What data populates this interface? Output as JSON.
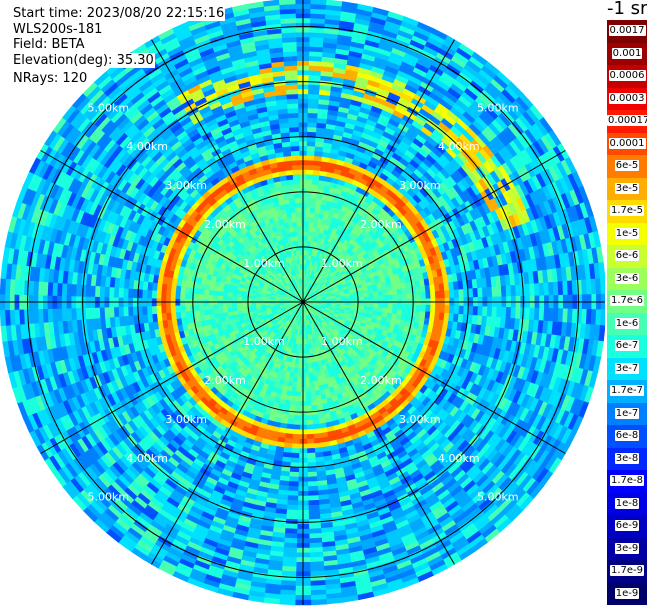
{
  "header": {
    "start_time": "Start time: 2023/08/20 22:15:16",
    "instrument": "WLS200s-181",
    "field": "Field: BETA",
    "elevation_label": "Elevation(deg):",
    "elevation_value": "35.30",
    "nrays": "NRays: 120"
  },
  "colorbar": {
    "unit": "-1 sr",
    "labels": [
      "0.0017",
      "0.001",
      "0.0006",
      "0.0003",
      "0.00017",
      "0.0001",
      "6e-5",
      "3e-5",
      "1.7e-5",
      "1e-5",
      "6e-6",
      "3e-6",
      "1.7e-6",
      "1e-6",
      "6e-7",
      "3e-7",
      "1.7e-7",
      "1e-7",
      "6e-8",
      "3e-8",
      "1.7e-8",
      "1e-8",
      "6e-9",
      "3e-9",
      "1.7e-9",
      "1e-9"
    ],
    "colors": [
      "#7f0000",
      "#9c0000",
      "#c40000",
      "#f10000",
      "#ff1a00",
      "#ff4a00",
      "#ff7c00",
      "#ffad00",
      "#ffdb00",
      "#f4ff00",
      "#c9ff2e",
      "#9dff5a",
      "#72ff86",
      "#46ffb2",
      "#1affdd",
      "#00e0ff",
      "#00b0ff",
      "#0080ff",
      "#0050ff",
      "#0028ff",
      "#0000ff",
      "#0000e4",
      "#0000c4",
      "#0000a4",
      "#000084",
      "#00006a"
    ]
  },
  "chart_data": {
    "type": "heatmap",
    "projection": "polar-ppi",
    "field": "BETA",
    "nrays": 120,
    "range_rings_km": [
      1.0,
      2.0,
      3.0,
      4.0,
      5.0
    ],
    "ring_labels": [
      "1.00km",
      "2.00km",
      "3.00km",
      "4.00km",
      "5.00km"
    ],
    "radial_spokes_deg": [
      0,
      30,
      60,
      90,
      120,
      150,
      180,
      210,
      240,
      270,
      300,
      330
    ],
    "max_range_km": 5.5,
    "features": {
      "inner_disk_km": [
        0,
        2.2
      ],
      "high_backscatter_ring_km": [
        2.3,
        2.7
      ],
      "outer_partial_arc_km": [
        3.8,
        4.4
      ],
      "outer_partial_arc_azimuth_deg": [
        -30,
        70
      ]
    },
    "scale": "log"
  }
}
